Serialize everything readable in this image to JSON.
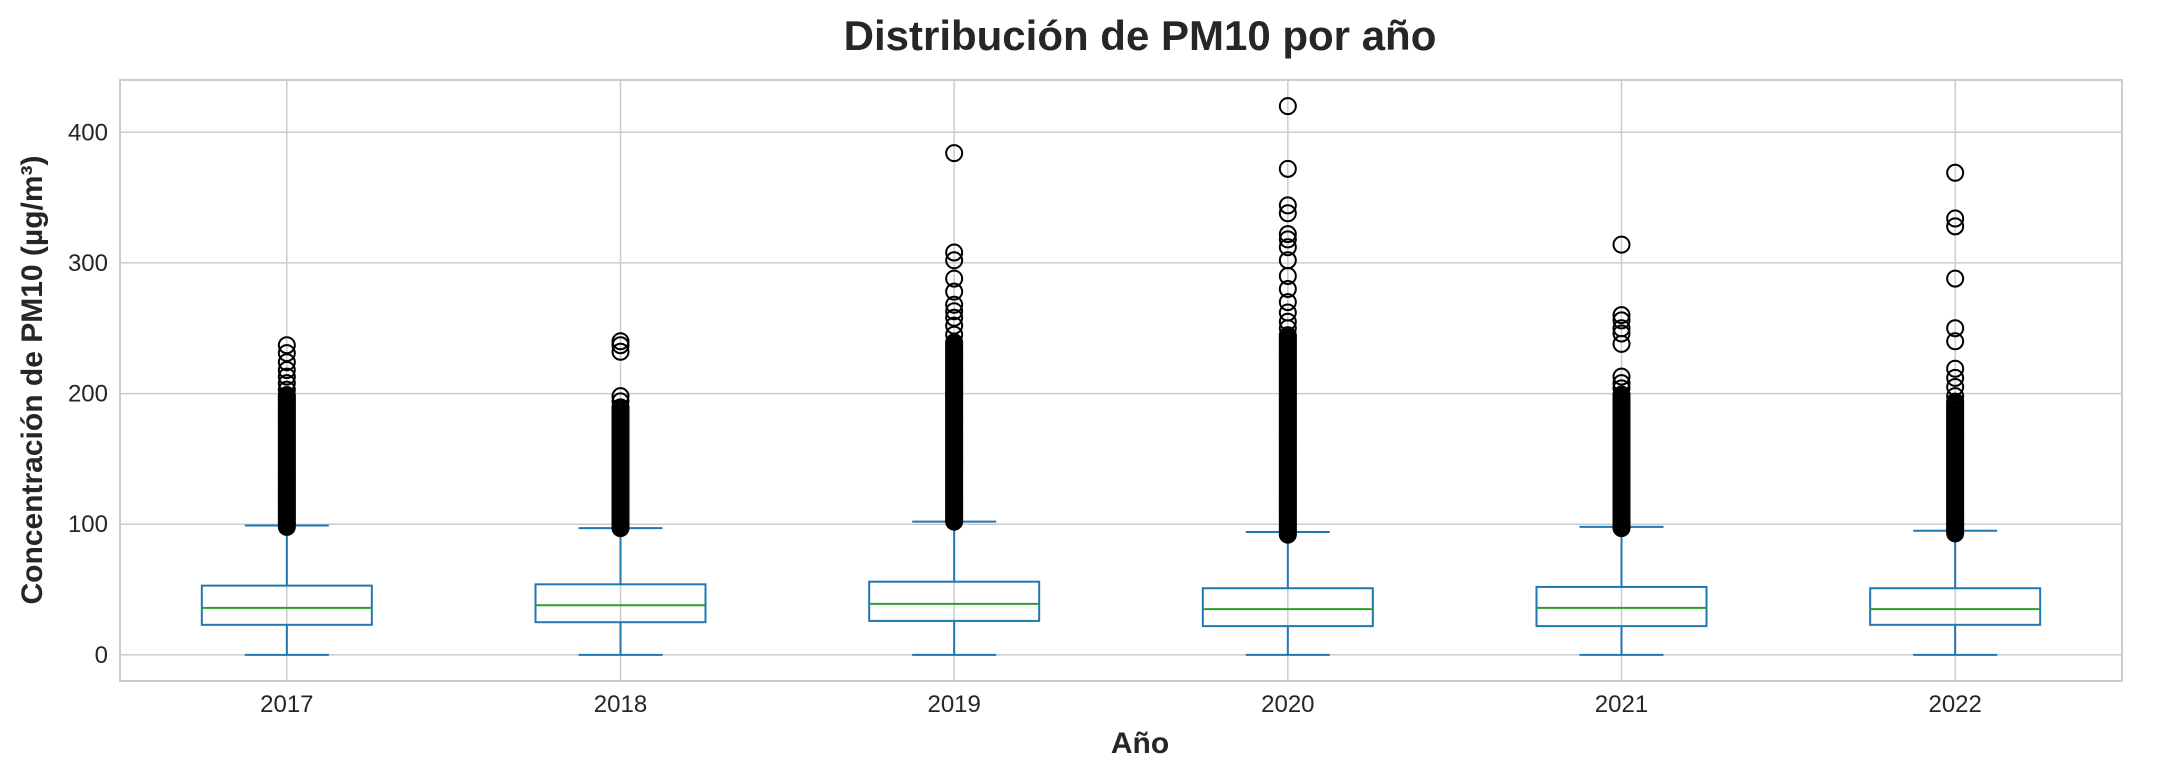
{
  "chart_data": {
    "type": "box",
    "title": "Distribución de PM10 por año",
    "xlabel": "Año",
    "ylabel": "Concentración de PM10 (µg/m³)",
    "ylim": [
      -20,
      440
    ],
    "yticks": [
      0,
      100,
      200,
      300,
      400
    ],
    "grid": true,
    "categories": [
      "2017",
      "2018",
      "2019",
      "2020",
      "2021",
      "2022"
    ],
    "colors": {
      "box": "#1f77b4",
      "median": "#2ca02c",
      "outlier": "#000000",
      "grid": "#cccccc",
      "frame": "#cccccc"
    },
    "boxes": [
      {
        "year": "2017",
        "whisker_low": 0,
        "q1": 23,
        "median": 36,
        "q3": 53,
        "whisker_high": 99,
        "outlier_range": [
          98,
          200
        ],
        "outliers": [
          203,
          208,
          213,
          218,
          224,
          231,
          237
        ]
      },
      {
        "year": "2018",
        "whisker_low": 0,
        "q1": 25,
        "median": 38,
        "q3": 54,
        "whisker_high": 97,
        "outlier_range": [
          97,
          190
        ],
        "outliers": [
          194,
          198,
          232,
          237,
          240
        ]
      },
      {
        "year": "2019",
        "whisker_low": 0,
        "q1": 26,
        "median": 39,
        "q3": 56,
        "whisker_high": 102,
        "outlier_range": [
          102,
          240
        ],
        "outliers": [
          245,
          252,
          258,
          263,
          268,
          278,
          288,
          302,
          308,
          384
        ]
      },
      {
        "year": "2020",
        "whisker_low": 0,
        "q1": 22,
        "median": 35,
        "q3": 51,
        "whisker_high": 94,
        "outlier_range": [
          92,
          245
        ],
        "outliers": [
          250,
          255,
          262,
          270,
          280,
          290,
          302,
          312,
          318,
          322,
          338,
          344,
          372,
          420
        ]
      },
      {
        "year": "2021",
        "whisker_low": 0,
        "q1": 22,
        "median": 36,
        "q3": 52,
        "whisker_high": 98,
        "outlier_range": [
          97,
          200
        ],
        "outliers": [
          204,
          208,
          213,
          238,
          246,
          250,
          256,
          260,
          314
        ]
      },
      {
        "year": "2022",
        "whisker_low": 0,
        "q1": 23,
        "median": 35,
        "q3": 51,
        "whisker_high": 95,
        "outlier_range": [
          93,
          195
        ],
        "outliers": [
          198,
          205,
          212,
          219,
          240,
          250,
          288,
          328,
          334,
          369
        ]
      }
    ]
  }
}
